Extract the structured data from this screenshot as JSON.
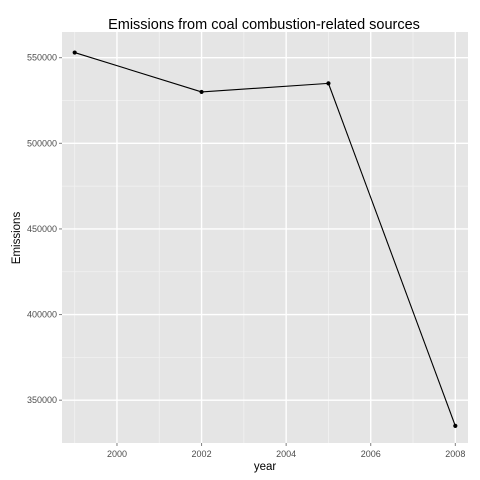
{
  "chart_data": {
    "type": "line",
    "title": "Emissions from coal combustion-related sources",
    "xlabel": "year",
    "ylabel": "Emissions",
    "x": [
      1999,
      2002,
      2005,
      2008
    ],
    "y": [
      553000,
      530000,
      535000,
      335000
    ],
    "xlim": [
      1998.7,
      2008.3
    ],
    "ylim": [
      325000,
      565000
    ],
    "xticks": [
      2000,
      2002,
      2004,
      2006,
      2008
    ],
    "yticks": [
      350000,
      400000,
      450000,
      500000,
      550000
    ],
    "xtick_labels": [
      "2000",
      "2002",
      "2004",
      "2006",
      "2008"
    ],
    "ytick_labels": [
      "350000",
      "400000",
      "450000",
      "500000",
      "550000"
    ],
    "grid": true,
    "legend": "none",
    "colors": {
      "panel": "#e5e5e5",
      "grid_major": "#ffffff",
      "grid_minor": "#f2f2f2",
      "line": "#000000",
      "point": "#000000",
      "tick": "#7f7f7f"
    }
  }
}
